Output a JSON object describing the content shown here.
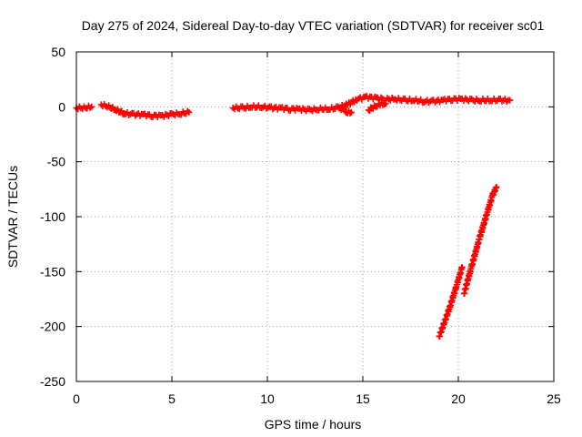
{
  "chart_data": {
    "type": "scatter",
    "title": "Day 275 of 2024, Sidereal Day-to-day VTEC variation (SDTVAR) for receiver sc01",
    "xlabel": "GPS time / hours",
    "ylabel": "SDTVAR / TECUs",
    "xlim": [
      0,
      25
    ],
    "ylim": [
      -250,
      50
    ],
    "xticks": [
      0,
      5,
      10,
      15,
      20,
      25
    ],
    "yticks": [
      -250,
      -200,
      -150,
      -100,
      -50,
      0,
      50
    ],
    "grid": true,
    "legend": "none",
    "marker": "plus",
    "color": "#ff0000",
    "segments": [
      {
        "x": [
          0.0,
          0.4,
          0.8
        ],
        "y": [
          -1,
          -1,
          0
        ]
      },
      {
        "x": [
          1.3,
          1.7,
          2.1,
          2.5,
          3.0,
          3.5,
          4.0,
          4.5,
          5.0,
          5.5,
          5.9
        ],
        "y": [
          2,
          0,
          -3,
          -6,
          -7,
          -7,
          -8,
          -8,
          -7,
          -6,
          -5
        ]
      },
      {
        "x": [
          8.2,
          8.7,
          9.2,
          9.7,
          10.2,
          10.7,
          11.2,
          11.7,
          12.2,
          12.7,
          13.2,
          13.7,
          14.2,
          14.7,
          15.2,
          15.7,
          16.2,
          16.7,
          17.2,
          17.7,
          18.2,
          18.7,
          19.2,
          19.7,
          20.2,
          20.7,
          21.2,
          21.7,
          22.2,
          22.7
        ],
        "y": [
          -1,
          -1,
          0,
          0,
          -1,
          -1,
          -2,
          -2,
          -3,
          -2,
          -2,
          -1,
          2,
          7,
          9,
          8,
          7,
          7,
          6,
          6,
          5,
          5,
          6,
          7,
          7,
          6,
          6,
          6,
          6,
          6
        ]
      },
      {
        "x": [
          13.8,
          14.0,
          14.2,
          14.4
        ],
        "y": [
          -1,
          -3,
          -5,
          -5
        ]
      },
      {
        "x": [
          15.3,
          15.6,
          15.9,
          16.2
        ],
        "y": [
          -3,
          0,
          2,
          3
        ]
      },
      {
        "x": [
          19.0,
          19.3,
          19.6,
          19.9,
          20.2
        ],
        "y": [
          -209,
          -195,
          -180,
          -163,
          -146
        ]
      },
      {
        "x": [
          20.3,
          20.7,
          21.1,
          21.5,
          21.8,
          22.0
        ],
        "y": [
          -170,
          -145,
          -120,
          -97,
          -80,
          -73
        ]
      }
    ]
  }
}
